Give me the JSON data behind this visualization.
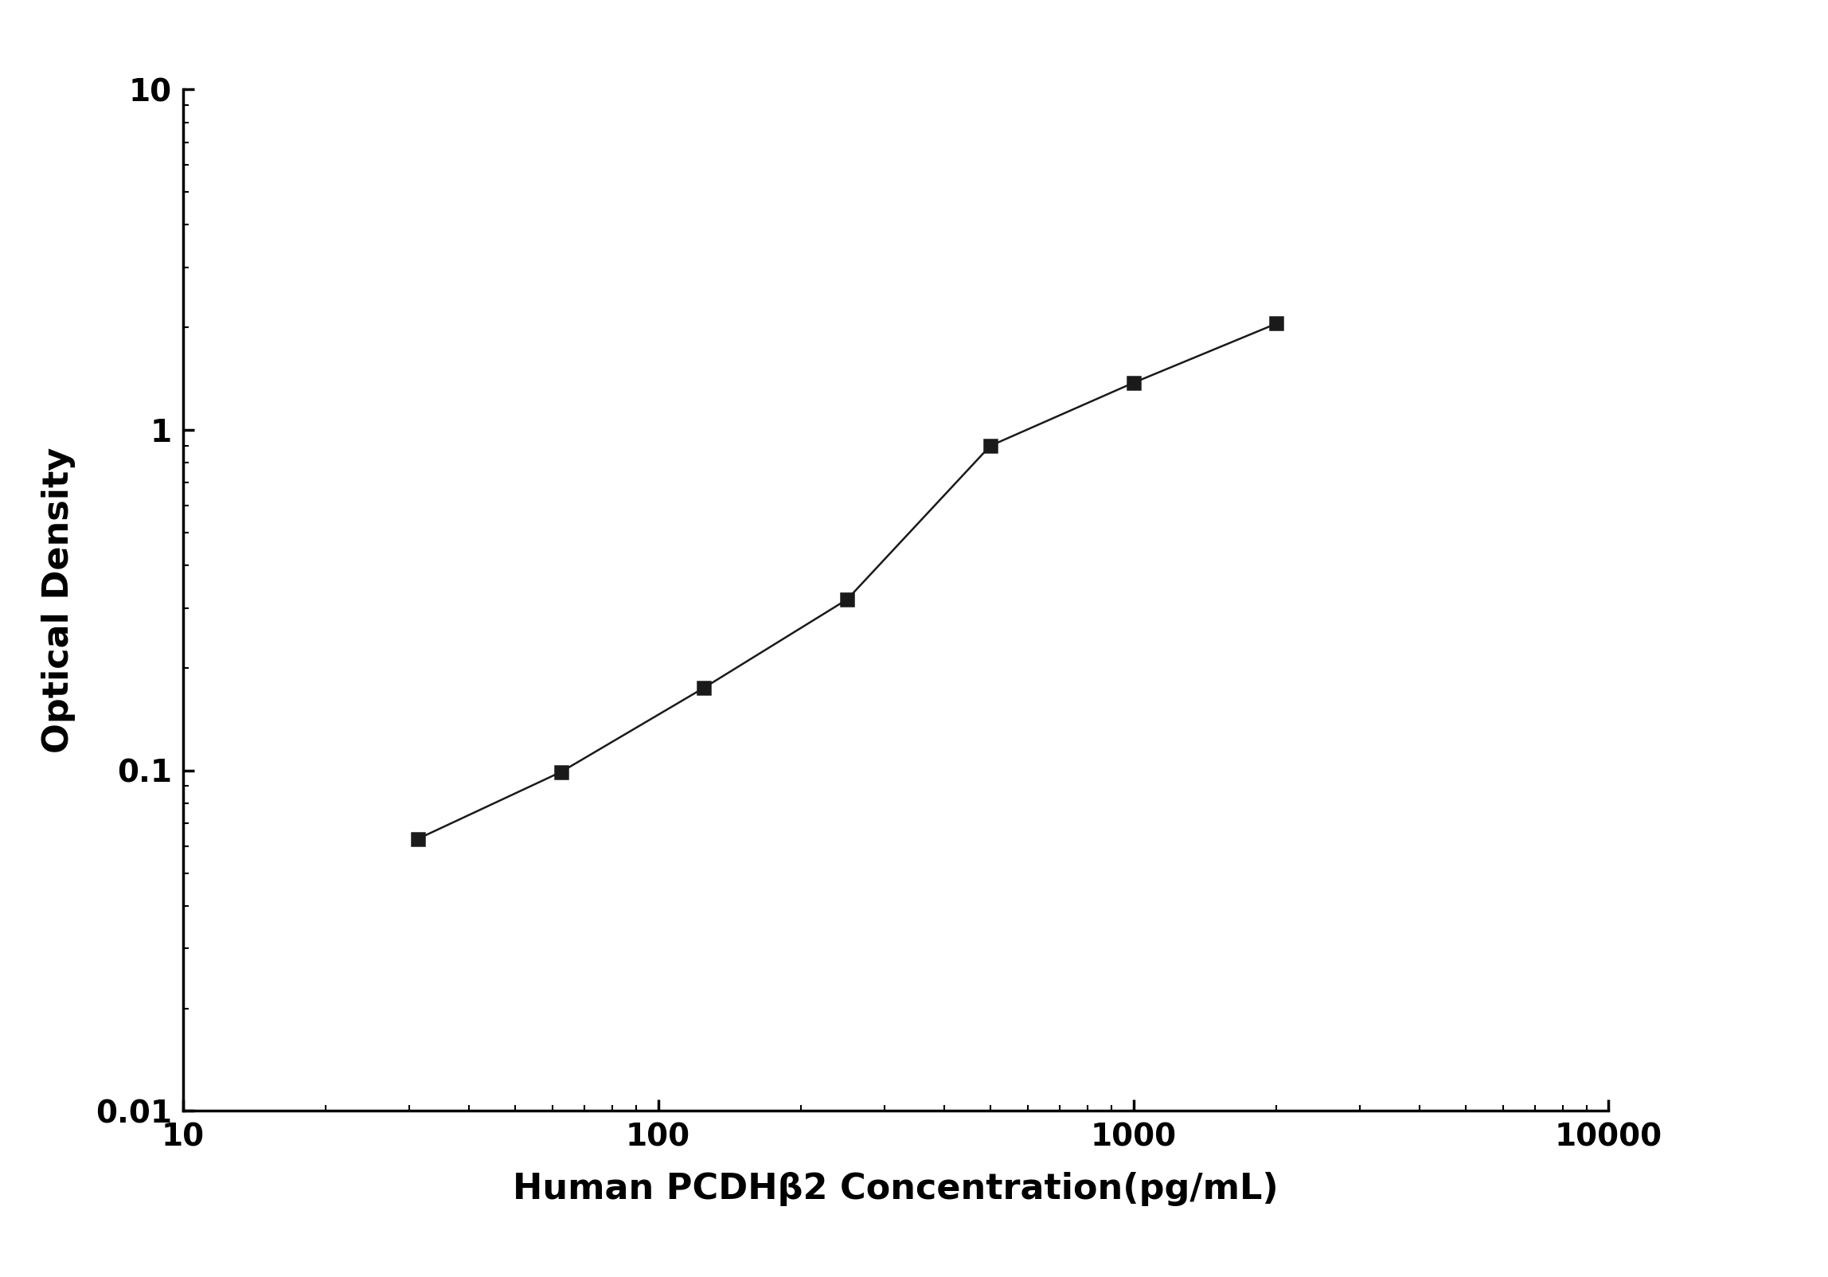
{
  "x": [
    31.25,
    62.5,
    125,
    250,
    500,
    1000,
    2000
  ],
  "y": [
    0.063,
    0.099,
    0.175,
    0.318,
    0.898,
    1.375,
    2.052
  ],
  "xlabel": "Human PCDHβ2 Concentration(pg/mL)",
  "ylabel": "Optical Density",
  "xlim": [
    10,
    10000
  ],
  "ylim": [
    0.01,
    10
  ],
  "line_color": "#1a1a1a",
  "marker": "s",
  "marker_color": "#1a1a1a",
  "marker_size": 12,
  "line_width": 1.8,
  "xlabel_fontsize": 32,
  "ylabel_fontsize": 32,
  "tick_fontsize": 28,
  "background_color": "#ffffff",
  "xticks": [
    10,
    100,
    1000,
    10000
  ],
  "xtick_labels": [
    "10",
    "100",
    "1000",
    "10000"
  ],
  "yticks": [
    0.01,
    0.1,
    1,
    10
  ],
  "ytick_labels": [
    "0.01",
    "0.1",
    "1",
    "10"
  ]
}
